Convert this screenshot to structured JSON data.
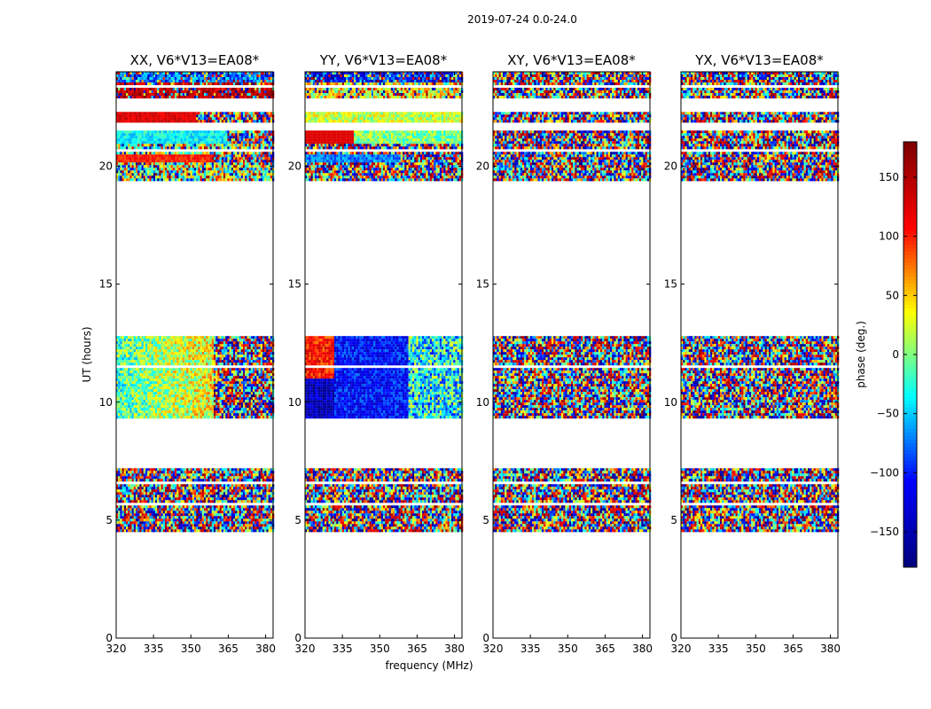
{
  "chart_data": {
    "type": "heatmap",
    "suptitle": "2019-07-24 0.0-24.0",
    "xlabel": "frequency (MHz)",
    "ylabel": "UT (hours)",
    "xlim": [
      320,
      383
    ],
    "ylim": [
      0,
      24
    ],
    "xticks": [
      320,
      335,
      350,
      365,
      380
    ],
    "yticks": [
      0,
      5,
      10,
      15,
      20
    ],
    "colorbar": {
      "label": "phase (deg.)",
      "range": [
        -180,
        180
      ],
      "ticks": [
        -150,
        -100,
        -50,
        0,
        50,
        100,
        150
      ],
      "colormap": [
        "#00007f",
        "#0000ff",
        "#00ffff",
        "#ffff00",
        "#ff0000",
        "#7f0000"
      ]
    },
    "data_blocks_ut": [
      [
        4.5,
        7.2
      ],
      [
        9.4,
        12.8
      ],
      [
        19.4,
        22.3
      ],
      [
        22.9,
        24.0
      ]
    ],
    "panels": [
      {
        "title": "XX, V6*V13=EA08*",
        "pol": "XX"
      },
      {
        "title": "YY, V6*V13=EA08*",
        "pol": "YY"
      },
      {
        "title": "XY, V6*V13=EA08*",
        "pol": "XY"
      },
      {
        "title": "YX, V6*V13=EA08*",
        "pol": "YX"
      }
    ]
  }
}
